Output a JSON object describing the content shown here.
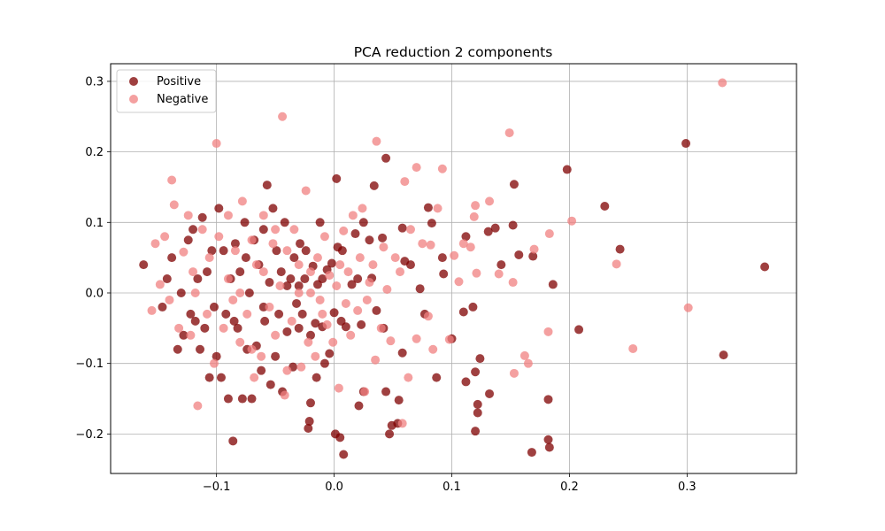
{
  "chart_data": {
    "type": "scatter",
    "title": "PCA reduction 2 components",
    "xlabel": "",
    "ylabel": "",
    "xlim": [
      -0.19,
      0.393
    ],
    "ylim": [
      -0.256,
      0.325
    ],
    "xticks": [
      -0.1,
      0.0,
      0.1,
      0.2,
      0.3
    ],
    "xtick_labels": [
      "−0.1",
      "0.0",
      "0.1",
      "0.2",
      "0.3"
    ],
    "yticks": [
      -0.2,
      -0.1,
      0.0,
      0.1,
      0.2,
      0.3
    ],
    "ytick_labels": [
      "−0.2",
      "−0.1",
      "0.0",
      "0.1",
      "0.2",
      "0.3"
    ],
    "grid": true,
    "legend_position": "top-left",
    "series": [
      {
        "name": "Positive",
        "color": "#7f0000",
        "points": [
          [
            0.299,
            0.212
          ],
          [
            0.366,
            0.037
          ],
          [
            0.331,
            -0.088
          ],
          [
            0.23,
            0.123
          ],
          [
            0.243,
            0.062
          ],
          [
            0.198,
            0.175
          ],
          [
            0.208,
            -0.052
          ],
          [
            0.186,
            0.012
          ],
          [
            0.182,
            -0.151
          ],
          [
            0.182,
            -0.208
          ],
          [
            0.183,
            -0.219
          ],
          [
            0.168,
            -0.226
          ],
          [
            0.169,
            0.052
          ],
          [
            0.157,
            0.054
          ],
          [
            0.153,
            0.154
          ],
          [
            0.152,
            0.096
          ],
          [
            0.142,
            0.04
          ],
          [
            0.137,
            0.092
          ],
          [
            0.132,
            -0.143
          ],
          [
            0.131,
            0.087
          ],
          [
            0.12,
            -0.112
          ],
          [
            0.12,
            -0.196
          ],
          [
            0.122,
            -0.158
          ],
          [
            0.122,
            -0.17
          ],
          [
            0.124,
            -0.093
          ],
          [
            0.118,
            -0.02
          ],
          [
            0.11,
            -0.027
          ],
          [
            0.112,
            0.08
          ],
          [
            0.112,
            -0.126
          ],
          [
            0.1,
            -0.065
          ],
          [
            0.092,
            0.05
          ],
          [
            0.093,
            0.027
          ],
          [
            0.087,
            -0.12
          ],
          [
            0.083,
            0.099
          ],
          [
            0.08,
            0.121
          ],
          [
            0.077,
            -0.03
          ],
          [
            0.073,
            0.006
          ],
          [
            0.065,
            0.04
          ],
          [
            0.06,
            0.045
          ],
          [
            0.058,
            0.092
          ],
          [
            0.058,
            -0.085
          ],
          [
            0.055,
            -0.152
          ],
          [
            0.054,
            -0.185
          ],
          [
            0.047,
            -0.2
          ],
          [
            0.049,
            -0.188
          ],
          [
            0.044,
            0.191
          ],
          [
            0.044,
            -0.14
          ],
          [
            0.042,
            -0.05
          ],
          [
            0.041,
            0.078
          ],
          [
            0.036,
            -0.025
          ],
          [
            0.034,
            0.152
          ],
          [
            0.032,
            0.021
          ],
          [
            0.03,
            0.075
          ],
          [
            0.025,
            0.1
          ],
          [
            0.025,
            -0.14
          ],
          [
            0.023,
            -0.045
          ],
          [
            0.021,
            -0.16
          ],
          [
            0.018,
            0.084
          ],
          [
            0.015,
            0.012
          ],
          [
            0.01,
            -0.048
          ],
          [
            0.008,
            -0.229
          ],
          [
            0.007,
            0.06
          ],
          [
            0.006,
            -0.04
          ],
          [
            0.005,
            -0.205
          ],
          [
            0.003,
            0.065
          ],
          [
            0.002,
            0.162
          ],
          [
            0.001,
            -0.2
          ],
          [
            0.0,
            -0.028
          ],
          [
            -0.002,
            0.042
          ],
          [
            -0.004,
            -0.086
          ],
          [
            -0.006,
            0.033
          ],
          [
            -0.008,
            -0.1
          ],
          [
            -0.01,
            -0.048
          ],
          [
            -0.012,
            0.1
          ],
          [
            -0.014,
            0.012
          ],
          [
            -0.015,
            -0.12
          ],
          [
            -0.016,
            -0.043
          ],
          [
            -0.018,
            0.038
          ],
          [
            -0.02,
            -0.156
          ],
          [
            -0.021,
            -0.182
          ],
          [
            -0.022,
            -0.192
          ],
          [
            -0.024,
            0.06
          ],
          [
            -0.025,
            0.02
          ],
          [
            -0.027,
            -0.03
          ],
          [
            -0.029,
            0.07
          ],
          [
            -0.03,
            0.01
          ],
          [
            -0.032,
            -0.015
          ],
          [
            -0.034,
            0.05
          ],
          [
            -0.035,
            -0.105
          ],
          [
            -0.037,
            0.02
          ],
          [
            -0.04,
            -0.055
          ],
          [
            -0.042,
            0.1
          ],
          [
            -0.044,
            -0.14
          ],
          [
            -0.045,
            0.03
          ],
          [
            -0.047,
            -0.03
          ],
          [
            -0.049,
            0.06
          ],
          [
            -0.05,
            -0.09
          ],
          [
            -0.052,
            0.12
          ],
          [
            -0.054,
            -0.13
          ],
          [
            -0.055,
            0.015
          ],
          [
            -0.057,
            0.153
          ],
          [
            -0.059,
            -0.04
          ],
          [
            -0.06,
            0.09
          ],
          [
            -0.062,
            -0.11
          ],
          [
            -0.064,
            0.04
          ],
          [
            -0.066,
            -0.075
          ],
          [
            -0.068,
            0.075
          ],
          [
            -0.07,
            -0.15
          ],
          [
            -0.072,
            0.0
          ],
          [
            -0.074,
            -0.08
          ],
          [
            -0.076,
            0.1
          ],
          [
            -0.078,
            -0.15
          ],
          [
            -0.08,
            0.03
          ],
          [
            -0.082,
            -0.05
          ],
          [
            -0.084,
            0.07
          ],
          [
            -0.086,
            -0.21
          ],
          [
            -0.088,
            0.02
          ],
          [
            -0.09,
            -0.15
          ],
          [
            -0.092,
            -0.03
          ],
          [
            -0.094,
            0.06
          ],
          [
            -0.096,
            -0.12
          ],
          [
            -0.098,
            0.12
          ],
          [
            -0.1,
            -0.09
          ],
          [
            -0.102,
            -0.02
          ],
          [
            -0.104,
            0.06
          ],
          [
            -0.106,
            -0.12
          ],
          [
            -0.108,
            0.03
          ],
          [
            -0.11,
            -0.05
          ],
          [
            -0.112,
            0.107
          ],
          [
            -0.114,
            -0.08
          ],
          [
            -0.116,
            0.02
          ],
          [
            -0.118,
            -0.04
          ],
          [
            -0.12,
            0.09
          ],
          [
            -0.122,
            -0.03
          ],
          [
            -0.124,
            0.075
          ],
          [
            -0.128,
            -0.06
          ],
          [
            -0.13,
            0.0
          ],
          [
            -0.133,
            -0.08
          ],
          [
            -0.138,
            0.05
          ],
          [
            -0.142,
            0.02
          ],
          [
            -0.146,
            -0.02
          ],
          [
            -0.162,
            0.04
          ],
          [
            -0.04,
            0.01
          ],
          [
            -0.06,
            -0.02
          ],
          [
            -0.02,
            -0.06
          ],
          [
            -0.01,
            0.02
          ],
          [
            0.02,
            0.02
          ],
          [
            -0.03,
            -0.05
          ],
          [
            -0.075,
            0.05
          ],
          [
            -0.085,
            -0.04
          ]
        ]
      },
      {
        "name": "Negative",
        "color": "#f08080",
        "points": [
          [
            0.33,
            0.298
          ],
          [
            0.301,
            -0.021
          ],
          [
            0.254,
            -0.079
          ],
          [
            0.24,
            0.041
          ],
          [
            0.202,
            0.102
          ],
          [
            0.183,
            0.084
          ],
          [
            0.182,
            -0.055
          ],
          [
            0.17,
            0.062
          ],
          [
            0.165,
            -0.1
          ],
          [
            0.162,
            -0.089
          ],
          [
            0.153,
            -0.114
          ],
          [
            0.152,
            0.015
          ],
          [
            0.149,
            0.227
          ],
          [
            0.14,
            0.027
          ],
          [
            0.132,
            0.13
          ],
          [
            0.121,
            0.028
          ],
          [
            0.12,
            0.124
          ],
          [
            0.119,
            0.108
          ],
          [
            0.116,
            0.065
          ],
          [
            0.11,
            0.07
          ],
          [
            0.106,
            0.016
          ],
          [
            0.102,
            0.053
          ],
          [
            0.098,
            -0.066
          ],
          [
            0.092,
            0.176
          ],
          [
            0.088,
            0.12
          ],
          [
            0.084,
            -0.08
          ],
          [
            0.082,
            0.068
          ],
          [
            0.08,
            -0.033
          ],
          [
            0.075,
            0.07
          ],
          [
            0.07,
            0.178
          ],
          [
            0.07,
            -0.065
          ],
          [
            0.065,
            0.09
          ],
          [
            0.063,
            -0.12
          ],
          [
            0.06,
            0.158
          ],
          [
            0.058,
            -0.185
          ],
          [
            0.056,
            0.03
          ],
          [
            0.052,
            0.05
          ],
          [
            0.048,
            -0.068
          ],
          [
            0.045,
            0.005
          ],
          [
            0.042,
            0.065
          ],
          [
            0.04,
            -0.05
          ],
          [
            0.036,
            0.215
          ],
          [
            0.035,
            -0.095
          ],
          [
            0.033,
            0.04
          ],
          [
            0.028,
            -0.01
          ],
          [
            0.026,
            -0.14
          ],
          [
            0.024,
            0.12
          ],
          [
            0.022,
            0.05
          ],
          [
            0.02,
            -0.025
          ],
          [
            0.016,
            0.11
          ],
          [
            0.014,
            -0.06
          ],
          [
            0.012,
            0.03
          ],
          [
            0.01,
            -0.015
          ],
          [
            0.008,
            0.088
          ],
          [
            0.004,
            -0.135
          ],
          [
            0.002,
            0.01
          ],
          [
            -0.001,
            -0.07
          ],
          [
            -0.004,
            0.025
          ],
          [
            -0.006,
            -0.045
          ],
          [
            -0.008,
            0.08
          ],
          [
            -0.012,
            -0.01
          ],
          [
            -0.014,
            0.05
          ],
          [
            -0.016,
            -0.09
          ],
          [
            -0.02,
            0.03
          ],
          [
            -0.022,
            -0.07
          ],
          [
            -0.024,
            0.145
          ],
          [
            -0.028,
            -0.105
          ],
          [
            -0.03,
            0.0
          ],
          [
            -0.034,
            0.09
          ],
          [
            -0.036,
            -0.04
          ],
          [
            -0.04,
            0.06
          ],
          [
            -0.042,
            -0.145
          ],
          [
            -0.044,
            0.25
          ],
          [
            -0.046,
            0.01
          ],
          [
            -0.05,
            -0.06
          ],
          [
            -0.052,
            0.07
          ],
          [
            -0.055,
            -0.02
          ],
          [
            -0.06,
            0.11
          ],
          [
            -0.062,
            -0.09
          ],
          [
            -0.066,
            0.04
          ],
          [
            -0.068,
            -0.12
          ],
          [
            -0.07,
            0.075
          ],
          [
            -0.074,
            -0.03
          ],
          [
            -0.078,
            0.13
          ],
          [
            -0.08,
            -0.07
          ],
          [
            -0.084,
            0.06
          ],
          [
            -0.086,
            -0.01
          ],
          [
            -0.09,
            0.11
          ],
          [
            -0.094,
            -0.05
          ],
          [
            -0.098,
            0.08
          ],
          [
            -0.1,
            0.212
          ],
          [
            -0.102,
            -0.1
          ],
          [
            -0.106,
            0.05
          ],
          [
            -0.108,
            -0.03
          ],
          [
            -0.112,
            0.09
          ],
          [
            -0.116,
            -0.16
          ],
          [
            -0.118,
            0.0
          ],
          [
            -0.12,
            0.03
          ],
          [
            -0.122,
            -0.06
          ],
          [
            -0.124,
            0.11
          ],
          [
            -0.128,
            0.058
          ],
          [
            -0.132,
            -0.05
          ],
          [
            -0.136,
            0.125
          ],
          [
            -0.138,
            0.16
          ],
          [
            -0.14,
            -0.01
          ],
          [
            -0.144,
            0.08
          ],
          [
            -0.148,
            0.012
          ],
          [
            -0.152,
            0.07
          ],
          [
            -0.155,
            -0.025
          ],
          [
            -0.05,
            0.09
          ],
          [
            -0.03,
            0.04
          ],
          [
            -0.01,
            -0.03
          ],
          [
            0.005,
            0.04
          ],
          [
            -0.06,
            0.03
          ],
          [
            -0.08,
            0.0
          ],
          [
            -0.02,
            0.0
          ],
          [
            -0.04,
            -0.11
          ],
          [
            0.03,
            0.015
          ],
          [
            -0.07,
            -0.08
          ],
          [
            -0.09,
            0.02
          ]
        ]
      }
    ]
  }
}
